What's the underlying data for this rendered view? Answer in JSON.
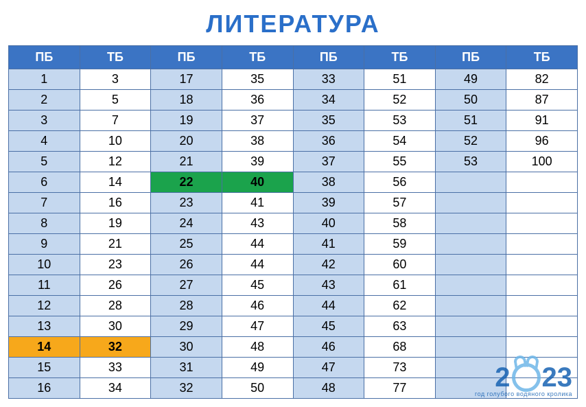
{
  "title": "ЛИТЕРАТУРА",
  "headers": [
    "ПБ",
    "ТБ",
    "ПБ",
    "ТБ",
    "ПБ",
    "ТБ",
    "ПБ",
    "ТБ"
  ],
  "columns_shaded": [
    true,
    false,
    true,
    false,
    true,
    false,
    true,
    false
  ],
  "header_bg": "#3b74c4",
  "header_fg": "#ffffff",
  "shaded_bg": "#c5d8ef",
  "plain_bg": "#ffffff",
  "orange_bg": "#f7a81b",
  "green_bg": "#1ba34c",
  "border_color": "#4a6fa5",
  "title_color": "#2a6fc9",
  "font_size_cell": 18,
  "font_size_header": 18,
  "font_size_title": 36,
  "rows": [
    [
      "1",
      "3",
      "17",
      "35",
      "33",
      "51",
      "49",
      "82"
    ],
    [
      "2",
      "5",
      "18",
      "36",
      "34",
      "52",
      "50",
      "87"
    ],
    [
      "3",
      "7",
      "19",
      "37",
      "35",
      "53",
      "51",
      "91"
    ],
    [
      "4",
      "10",
      "20",
      "38",
      "36",
      "54",
      "52",
      "96"
    ],
    [
      "5",
      "12",
      "21",
      "39",
      "37",
      "55",
      "53",
      "100"
    ],
    [
      "6",
      "14",
      "22",
      "40",
      "38",
      "56",
      "",
      ""
    ],
    [
      "7",
      "16",
      "23",
      "41",
      "39",
      "57",
      "",
      ""
    ],
    [
      "8",
      "19",
      "24",
      "43",
      "40",
      "58",
      "",
      ""
    ],
    [
      "9",
      "21",
      "25",
      "44",
      "41",
      "59",
      "",
      ""
    ],
    [
      "10",
      "23",
      "26",
      "44",
      "42",
      "60",
      "",
      ""
    ],
    [
      "11",
      "26",
      "27",
      "45",
      "43",
      "61",
      "",
      ""
    ],
    [
      "12",
      "28",
      "28",
      "46",
      "44",
      "62",
      "",
      ""
    ],
    [
      "13",
      "30",
      "29",
      "47",
      "45",
      "63",
      "",
      ""
    ],
    [
      "14",
      "32",
      "30",
      "48",
      "46",
      "68",
      "",
      ""
    ],
    [
      "15",
      "33",
      "31",
      "49",
      "47",
      "73",
      "",
      ""
    ],
    [
      "16",
      "34",
      "32",
      "50",
      "48",
      "77",
      "",
      ""
    ]
  ],
  "highlights": {
    "orange": [
      [
        13,
        0
      ],
      [
        13,
        1
      ]
    ],
    "green": [
      [
        5,
        2
      ],
      [
        5,
        3
      ]
    ]
  },
  "watermark": {
    "year_parts": [
      "2",
      "",
      "2",
      "3"
    ],
    "subtitle": "год голубого водяного кролика",
    "color": "#1863b3"
  }
}
